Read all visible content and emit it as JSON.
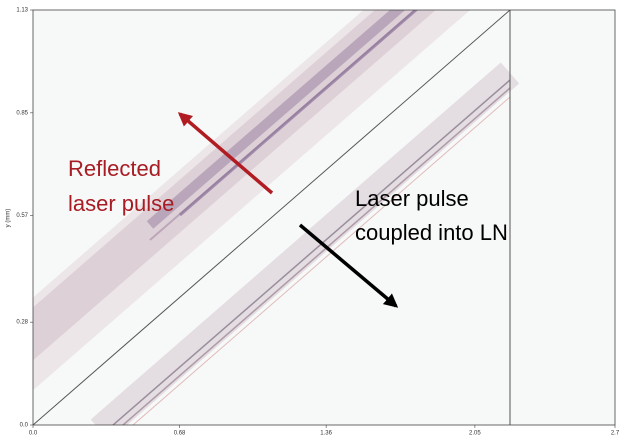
{
  "chart_data": {
    "type": "field",
    "y_label": "y (mm)",
    "xlim": [
      0,
      2.7
    ],
    "ylim": [
      0,
      1.13
    ],
    "xticks": [
      {
        "value": 0,
        "label": "0.0"
      },
      0.68,
      1.36,
      2.05,
      2.7
    ],
    "yticks": [
      {
        "value": 0,
        "label": "0.0"
      },
      0.28,
      0.57,
      0.85,
      1.13
    ],
    "annotations": [
      "Reflected",
      "laser pulse",
      "Laser pulse",
      "coupled into LN"
    ]
  }
}
